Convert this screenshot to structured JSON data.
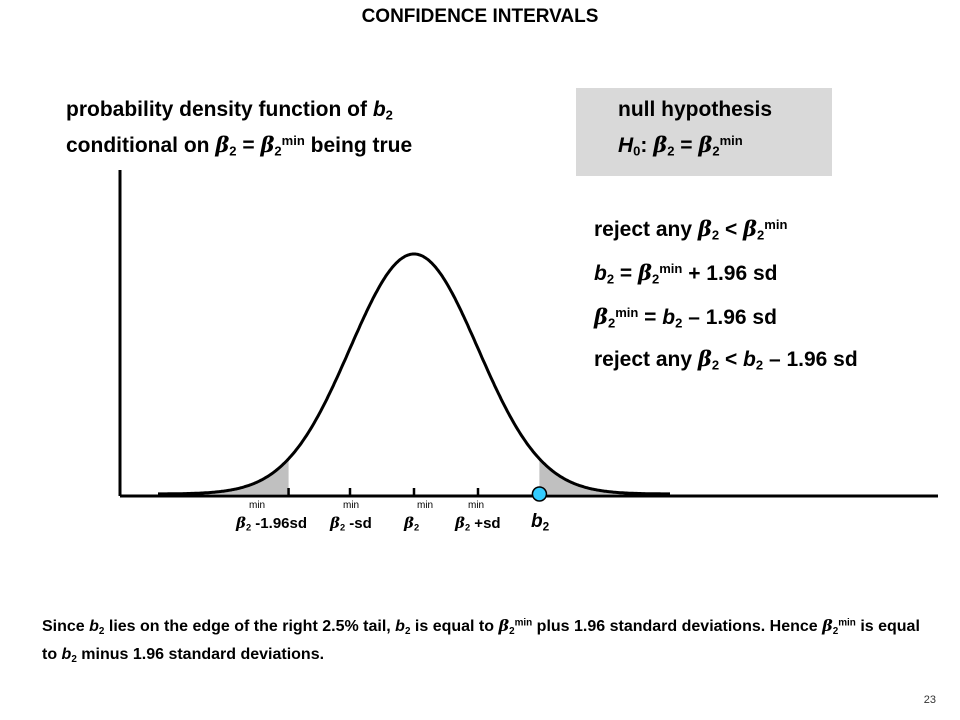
{
  "title": "CONFIDENCE INTERVALS",
  "pdf_label": {
    "line1_prefix": "probability density function of ",
    "b": "b",
    "sub2": "2",
    "line2_prefix": "conditional on ",
    "beta": "β",
    "eq": " = ",
    "sup_min": "min",
    "line2_suffix": " being true"
  },
  "null_box": {
    "line1": "null hypothesis",
    "H": "H",
    "sub0": "0",
    "colon": ": ",
    "beta": "β",
    "sub2": "2",
    "eq": " = ",
    "sup_min": "min"
  },
  "reasoning": {
    "r1_prefix": "reject any ",
    "r1_lt": " < ",
    "r2_eq": " = ",
    "r2_plus": " + 1.96 sd",
    "r3_eq": " = ",
    "r3_minus": " – 1.96 sd",
    "r4_prefix": "reject any ",
    "r4_lt": " < ",
    "r4_minus": " – 1.96 sd"
  },
  "axis_labels": {
    "min": "min",
    "t1_suffix": " -1.96sd",
    "t2_suffix": " -sd",
    "t4_suffix": " +sd",
    "b2_letter": "b",
    "b2_sub": "2"
  },
  "caption": {
    "p1": "Since ",
    "p2": " lies on the edge of the right 2.5% tail, ",
    "p3": " is equal to ",
    "p4": " plus 1.96 standard deviations.  Hence ",
    "p5": " is equal to ",
    "p6": " minus 1.96 standard deviations."
  },
  "page_number": "23",
  "colors": {
    "tail_fill": "#c0c0c0",
    "marker": "#33ccff",
    "box": "#d9d9d9"
  },
  "chart_data": {
    "type": "area",
    "curve": "normal density",
    "critical_z": 1.96,
    "shaded_tails_percent": [
      2.5,
      2.5
    ],
    "tick_marks_sd": [
      -1.96,
      -1,
      0,
      1,
      1.96
    ],
    "marker_at_sd": 1.96
  }
}
